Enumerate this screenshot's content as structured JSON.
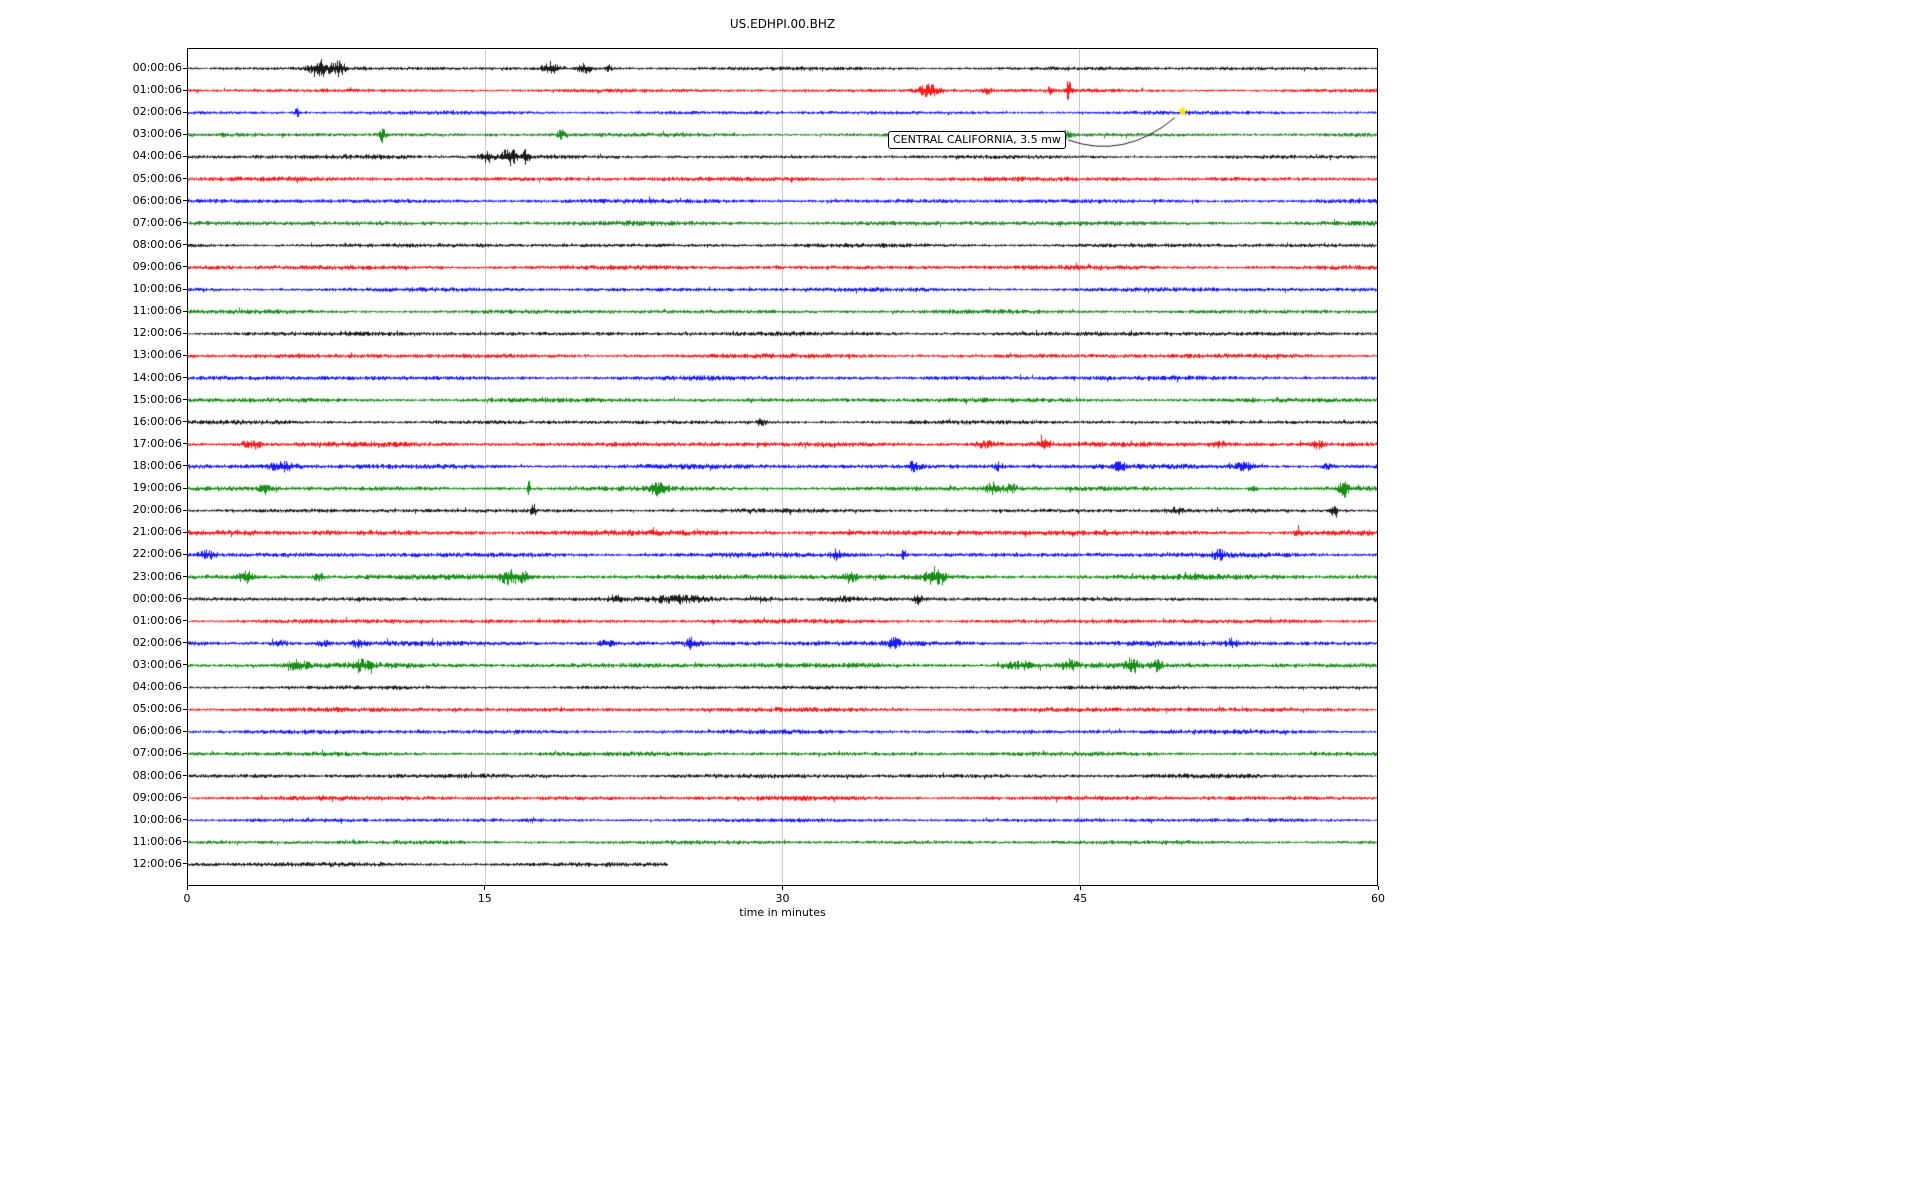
{
  "title": "US.EDHPI.00.BHZ",
  "annotation": {
    "text": "CENTRAL CALIFORNIA, 3.5 mw",
    "marker": {
      "row_index": 2,
      "minute": 50.2,
      "symbol": "star",
      "glyph": "★",
      "color": "#ffe600"
    }
  },
  "colors": {
    "black": "#000000",
    "red": "#ff0000",
    "blue": "#0000ff",
    "green": "#008000",
    "grid": "#cccccc",
    "axis": "#000000"
  },
  "chart_data": {
    "type": "line",
    "variant": "helicorder",
    "title": "US.EDHPI.00.BHZ",
    "xlabel": "time in minutes",
    "xlim": [
      0,
      60
    ],
    "x_ticks": [
      0,
      15,
      30,
      45,
      60
    ],
    "minutes_per_row": 60,
    "events_format": "[minute, relative_amplitude, width_minutes]",
    "rows": [
      {
        "label": "00:00:06",
        "color": "black",
        "noise": 1.2,
        "events": [
          [
            6.6,
            4.0,
            0.5
          ],
          [
            7.6,
            3.0,
            0.35
          ],
          [
            18.3,
            3.5,
            0.4
          ],
          [
            20.0,
            3.0,
            0.35
          ],
          [
            21.2,
            2.2,
            0.15
          ]
        ]
      },
      {
        "label": "01:00:06",
        "color": "red",
        "noise": 1.2,
        "events": [
          [
            37.4,
            3.5,
            0.6
          ],
          [
            40.3,
            1.8,
            0.25
          ],
          [
            43.5,
            2.0,
            0.2
          ],
          [
            44.4,
            4.5,
            0.15
          ]
        ]
      },
      {
        "label": "02:00:06",
        "color": "blue",
        "noise": 1.2,
        "events": [
          [
            5.5,
            3.5,
            0.15
          ]
        ]
      },
      {
        "label": "03:00:06",
        "color": "green",
        "noise": 1.3,
        "events": [
          [
            9.8,
            3.5,
            0.15
          ],
          [
            18.8,
            2.5,
            0.2
          ],
          [
            44.2,
            2.2,
            0.4
          ]
        ]
      },
      {
        "label": "04:00:06",
        "color": "black",
        "noise": 1.2,
        "events": [
          [
            9.5,
            1.2,
            2.5
          ],
          [
            15.1,
            3.0,
            0.3
          ],
          [
            16.2,
            4.0,
            0.4
          ],
          [
            17.0,
            3.0,
            0.2
          ]
        ]
      },
      {
        "label": "05:00:06",
        "color": "red",
        "noise": 1.5,
        "events": []
      },
      {
        "label": "06:00:06",
        "color": "blue",
        "noise": 1.4,
        "events": []
      },
      {
        "label": "07:00:06",
        "color": "green",
        "noise": 1.5,
        "events": []
      },
      {
        "label": "08:00:06",
        "color": "black",
        "noise": 1.3,
        "events": []
      },
      {
        "label": "09:00:06",
        "color": "red",
        "noise": 1.5,
        "events": []
      },
      {
        "label": "10:00:06",
        "color": "blue",
        "noise": 1.4,
        "events": []
      },
      {
        "label": "11:00:06",
        "color": "green",
        "noise": 1.4,
        "events": []
      },
      {
        "label": "12:00:06",
        "color": "black",
        "noise": 1.4,
        "events": []
      },
      {
        "label": "13:00:06",
        "color": "red",
        "noise": 1.5,
        "events": []
      },
      {
        "label": "14:00:06",
        "color": "blue",
        "noise": 1.5,
        "events": []
      },
      {
        "label": "15:00:06",
        "color": "green",
        "noise": 1.5,
        "events": []
      },
      {
        "label": "16:00:06",
        "color": "black",
        "noise": 1.3,
        "events": [
          [
            28.9,
            2.0,
            0.2
          ]
        ]
      },
      {
        "label": "17:00:06",
        "color": "red",
        "noise": 1.6,
        "events": [
          [
            3.0,
            2.5,
            0.3
          ],
          [
            3.5,
            2.0,
            0.2
          ],
          [
            40.2,
            2.0,
            0.6
          ],
          [
            43.2,
            2.2,
            0.3
          ],
          [
            52.0,
            1.4,
            0.4
          ],
          [
            57.0,
            1.4,
            0.3
          ]
        ]
      },
      {
        "label": "18:00:06",
        "color": "blue",
        "noise": 1.6,
        "events": [
          [
            4.7,
            2.0,
            0.6
          ],
          [
            36.6,
            2.3,
            0.3
          ],
          [
            40.9,
            1.8,
            0.25
          ],
          [
            47.0,
            1.6,
            0.25
          ],
          [
            53.3,
            2.0,
            0.5
          ],
          [
            57.5,
            1.5,
            0.3
          ]
        ]
      },
      {
        "label": "19:00:06",
        "color": "green",
        "noise": 1.5,
        "events": [
          [
            3.9,
            2.3,
            0.3
          ],
          [
            17.2,
            5.5,
            0.08
          ],
          [
            23.7,
            2.3,
            0.4
          ],
          [
            40.6,
            2.5,
            0.4
          ],
          [
            41.5,
            2.0,
            0.3
          ],
          [
            53.7,
            1.8,
            0.25
          ],
          [
            58.3,
            3.5,
            0.2
          ]
        ]
      },
      {
        "label": "20:00:06",
        "color": "black",
        "noise": 1.3,
        "events": [
          [
            17.4,
            5.0,
            0.1
          ],
          [
            49.8,
            1.6,
            0.4
          ],
          [
            57.8,
            3.0,
            0.2
          ]
        ]
      },
      {
        "label": "21:00:06",
        "color": "red",
        "noise": 1.8,
        "events": [
          [
            56.0,
            2.5,
            0.15
          ]
        ]
      },
      {
        "label": "22:00:06",
        "color": "blue",
        "noise": 1.6,
        "events": [
          [
            0.9,
            2.2,
            0.5
          ],
          [
            32.7,
            2.0,
            0.25
          ],
          [
            36.1,
            2.3,
            0.15
          ],
          [
            52.0,
            1.3,
            0.3
          ]
        ]
      },
      {
        "label": "23:00:06",
        "color": "green",
        "noise": 1.7,
        "events": [
          [
            2.9,
            2.6,
            0.35
          ],
          [
            6.6,
            1.8,
            0.25
          ],
          [
            16.2,
            2.6,
            0.5
          ],
          [
            16.9,
            2.2,
            0.3
          ],
          [
            33.4,
            2.0,
            0.3
          ],
          [
            37.6,
            2.8,
            0.5
          ]
        ]
      },
      {
        "label": "00:00:06",
        "color": "black",
        "noise": 1.3,
        "events": [
          [
            21.5,
            1.5,
            0.3
          ],
          [
            25.0,
            1.3,
            1.5
          ],
          [
            29.0,
            1.2,
            1.0
          ],
          [
            33.0,
            1.3,
            1.2
          ],
          [
            36.8,
            2.8,
            0.2
          ]
        ]
      },
      {
        "label": "01:00:06",
        "color": "red",
        "noise": 1.4,
        "events": []
      },
      {
        "label": "02:00:06",
        "color": "blue",
        "noise": 1.6,
        "events": [
          [
            4.6,
            2.0,
            0.4
          ],
          [
            6.8,
            1.7,
            0.3
          ],
          [
            8.6,
            1.6,
            0.3
          ],
          [
            21.2,
            1.9,
            0.35
          ],
          [
            25.4,
            2.0,
            0.3
          ],
          [
            35.6,
            1.9,
            0.25
          ],
          [
            52.7,
            1.5,
            0.35
          ]
        ]
      },
      {
        "label": "03:00:06",
        "color": "green",
        "noise": 1.7,
        "events": [
          [
            5.5,
            1.5,
            0.5
          ],
          [
            8.7,
            1.6,
            0.5
          ],
          [
            41.8,
            1.8,
            0.8
          ],
          [
            44.5,
            1.6,
            0.4
          ],
          [
            47.6,
            2.6,
            0.3
          ],
          [
            48.9,
            1.8,
            0.25
          ]
        ]
      },
      {
        "label": "04:00:06",
        "color": "black",
        "noise": 1.2,
        "events": []
      },
      {
        "label": "05:00:06",
        "color": "red",
        "noise": 1.5,
        "events": []
      },
      {
        "label": "06:00:06",
        "color": "blue",
        "noise": 1.4,
        "events": []
      },
      {
        "label": "07:00:06",
        "color": "green",
        "noise": 1.4,
        "events": []
      },
      {
        "label": "08:00:06",
        "color": "black",
        "noise": 1.4,
        "events": []
      },
      {
        "label": "09:00:06",
        "color": "red",
        "noise": 1.5,
        "events": []
      },
      {
        "label": "10:00:06",
        "color": "blue",
        "noise": 1.3,
        "events": []
      },
      {
        "label": "11:00:06",
        "color": "green",
        "noise": 1.3,
        "events": []
      },
      {
        "label": "12:00:06",
        "color": "black",
        "noise": 1.4,
        "end": 24.2,
        "events": []
      }
    ]
  }
}
